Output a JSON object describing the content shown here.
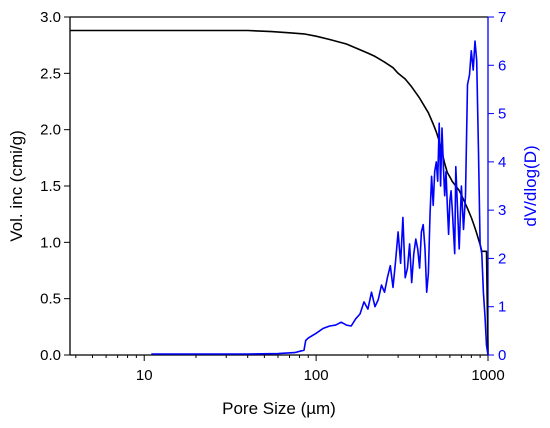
{
  "chart_data": {
    "type": "line",
    "xlabel": "Pore Size (µm)",
    "ylabel": "Vol. inc (cmi/g)",
    "y2label": "dV/dlog(D)",
    "x_scale": "log",
    "xlim": [
      3.7,
      1000
    ],
    "ylim": [
      0,
      3.0
    ],
    "y2lim": [
      0,
      7
    ],
    "x_ticks": [
      10,
      100,
      1000
    ],
    "x_tick_labels": [
      "10",
      "100",
      "1000"
    ],
    "y_ticks": [
      0.0,
      0.5,
      1.0,
      1.5,
      2.0,
      2.5,
      3.0
    ],
    "y_tick_labels": [
      "0.0",
      "0.5",
      "1.0",
      "1.5",
      "2.0",
      "2.5",
      "3.0"
    ],
    "y2_ticks": [
      0,
      1,
      2,
      3,
      4,
      5,
      6,
      7
    ],
    "y2_tick_labels": [
      "0",
      "1",
      "2",
      "3",
      "4",
      "5",
      "6",
      "7"
    ],
    "grid": false,
    "colors": {
      "cumulative": "#000000",
      "differential": "#0000ff",
      "axis_left": "#000000",
      "axis_right": "#0000ff"
    },
    "series": [
      {
        "axis": "left",
        "color": "#000000",
        "x": [
          3.7,
          10,
          20,
          40,
          55,
          70,
          85,
          100,
          120,
          150,
          180,
          200,
          220,
          250,
          280,
          300,
          330,
          360,
          400,
          450,
          480,
          500,
          520,
          540,
          560,
          580,
          600,
          620,
          650,
          680,
          700,
          730,
          760,
          800,
          830,
          860,
          900,
          920,
          950,
          980,
          1000
        ],
        "y": [
          2.88,
          2.88,
          2.88,
          2.88,
          2.87,
          2.86,
          2.85,
          2.83,
          2.8,
          2.76,
          2.71,
          2.68,
          2.65,
          2.6,
          2.55,
          2.5,
          2.45,
          2.38,
          2.28,
          2.15,
          2.05,
          1.98,
          1.9,
          1.8,
          1.7,
          1.62,
          1.58,
          1.54,
          1.5,
          1.46,
          1.42,
          1.36,
          1.3,
          1.22,
          1.15,
          1.08,
          0.98,
          0.92,
          0.92,
          0.92,
          0.0
        ]
      },
      {
        "axis": "right",
        "color": "#0000ff",
        "x": [
          11,
          20,
          40,
          60,
          75,
          85,
          87,
          90,
          100,
          110,
          120,
          130,
          140,
          150,
          160,
          170,
          180,
          190,
          200,
          210,
          220,
          230,
          240,
          250,
          260,
          270,
          280,
          290,
          300,
          310,
          320,
          330,
          340,
          350,
          360,
          370,
          380,
          390,
          400,
          410,
          420,
          430,
          440,
          450,
          460,
          470,
          480,
          490,
          500,
          510,
          520,
          530,
          540,
          550,
          560,
          570,
          580,
          590,
          600,
          610,
          620,
          640,
          650,
          660,
          680,
          700,
          720,
          740,
          760,
          780,
          800,
          820,
          840,
          860,
          880,
          900,
          920,
          940,
          960,
          980,
          1000
        ],
        "y": [
          0.02,
          0.02,
          0.02,
          0.03,
          0.05,
          0.1,
          0.3,
          0.35,
          0.45,
          0.55,
          0.6,
          0.62,
          0.68,
          0.62,
          0.6,
          0.75,
          0.85,
          1.1,
          0.95,
          1.3,
          1.0,
          1.15,
          1.45,
          1.3,
          1.6,
          1.85,
          1.4,
          1.95,
          2.55,
          1.9,
          2.85,
          1.6,
          1.8,
          2.3,
          1.5,
          2.1,
          2.4,
          2.2,
          1.8,
          2.55,
          2.7,
          2.2,
          1.3,
          1.7,
          2.9,
          3.7,
          3.1,
          3.8,
          4.0,
          3.6,
          4.8,
          3.5,
          4.7,
          3.9,
          3.3,
          3.8,
          3.1,
          2.5,
          3.2,
          3.4,
          3.0,
          2.1,
          3.9,
          3.3,
          2.2,
          3.5,
          2.6,
          3.3,
          5.6,
          5.8,
          6.3,
          5.9,
          6.5,
          6.1,
          4.2,
          2.3,
          2.1,
          1.3,
          0.8,
          0.2,
          0.0
        ]
      }
    ]
  }
}
